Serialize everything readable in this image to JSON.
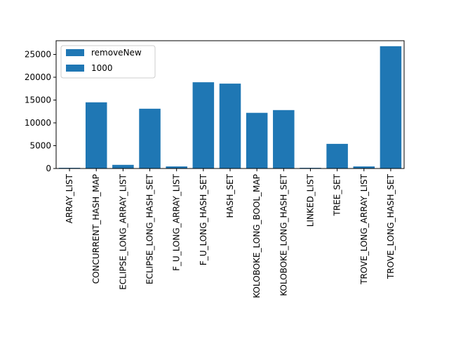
{
  "chart_data": {
    "type": "bar",
    "categories": [
      "ARRAY_LIST",
      "CONCURRENT_HASH_MAP",
      "ECLIPSE_LONG_ARRAY_LIST",
      "ECLIPSE_LONG_HASH_SET",
      "F_U_LONG_ARRAY_LIST",
      "F_U_LONG_HASH_SET",
      "HASH_SET",
      "KOLOBOKE_LONG_BOOL_MAP",
      "KOLOBOKE_LONG_HASH_SET",
      "LINKED_LIST",
      "TREE_SET",
      "TROVE_LONG_ARRAY_LIST",
      "TROVE_LONG_HASH_SET"
    ],
    "values": [
      150,
      14500,
      800,
      13100,
      450,
      18900,
      18600,
      12200,
      12800,
      150,
      5400,
      450,
      26800
    ],
    "legend": [
      "removeNew",
      "1000"
    ],
    "legend_position": "upper-left",
    "bar_color": "#1f77b4",
    "ylim": [
      0,
      28000
    ],
    "yticks": [
      0,
      5000,
      10000,
      15000,
      20000,
      25000
    ],
    "grid": false,
    "title": "",
    "xlabel": "",
    "ylabel": ""
  }
}
